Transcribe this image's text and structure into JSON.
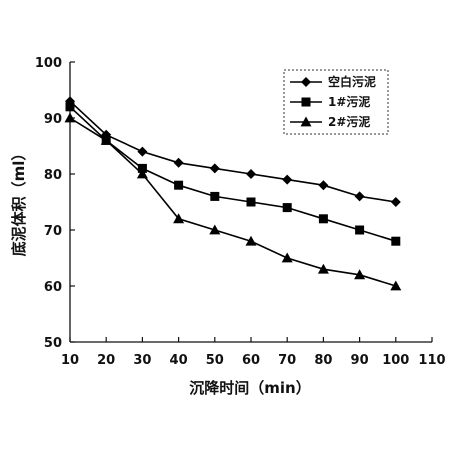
{
  "chart_data": {
    "type": "line",
    "xlabel": "沉降时间（min）",
    "ylabel": "底泥体积（ml）",
    "xlim": [
      10,
      110
    ],
    "ylim": [
      50,
      100
    ],
    "x_ticks": [
      10,
      20,
      30,
      40,
      50,
      60,
      70,
      80,
      90,
      100,
      110
    ],
    "y_ticks": [
      50,
      60,
      70,
      80,
      90,
      100
    ],
    "grid": false,
    "legend_position": "top-right",
    "x": [
      10,
      20,
      30,
      40,
      50,
      60,
      70,
      80,
      90,
      100
    ],
    "series": [
      {
        "name": "空白污泥",
        "marker": "diamond",
        "values": [
          93,
          87,
          84,
          82,
          81,
          80,
          79,
          78,
          76,
          75
        ]
      },
      {
        "name": "1#污泥",
        "marker": "square",
        "values": [
          92,
          86,
          81,
          78,
          76,
          75,
          74,
          72,
          70,
          68
        ]
      },
      {
        "name": "2#污泥",
        "marker": "triangle",
        "values": [
          90,
          86,
          80,
          72,
          70,
          68,
          65,
          63,
          62,
          60
        ]
      }
    ]
  }
}
